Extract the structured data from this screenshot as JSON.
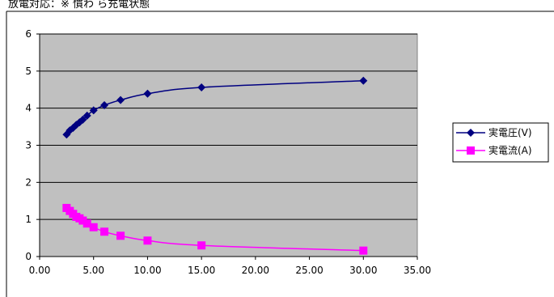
{
  "chart_data": {
    "type": "scatter",
    "title": "放電対応：※ 慣わ ら充電状態",
    "xlabel": "",
    "ylabel": "",
    "xlim": [
      0,
      35
    ],
    "ylim": [
      0,
      6
    ],
    "x_ticks": [
      "0.00",
      "5.00",
      "10.00",
      "15.00",
      "20.00",
      "25.00",
      "30.00",
      "35.00"
    ],
    "y_ticks": [
      "0",
      "1",
      "2",
      "3",
      "4",
      "5",
      "6"
    ],
    "grid": true,
    "plot_background": "#c0c0c0",
    "legend_position": "right",
    "series": [
      {
        "name": "実電圧(V)",
        "color": "#000080",
        "marker": "diamond",
        "x": [
          2.5,
          2.8,
          3.1,
          3.4,
          3.7,
          4.0,
          4.4,
          5.0,
          6.0,
          7.5,
          10.0,
          15.0,
          30.0
        ],
        "y": [
          3.29,
          3.4,
          3.47,
          3.55,
          3.62,
          3.69,
          3.8,
          3.94,
          4.08,
          4.22,
          4.39,
          4.56,
          4.74
        ]
      },
      {
        "name": "実電流(A)",
        "color": "#ff00ff",
        "marker": "square",
        "x": [
          2.5,
          2.8,
          3.1,
          3.4,
          3.7,
          4.0,
          4.4,
          5.0,
          6.0,
          7.5,
          10.0,
          15.0,
          30.0
        ],
        "y": [
          1.31,
          1.23,
          1.15,
          1.07,
          1.03,
          0.97,
          0.89,
          0.79,
          0.67,
          0.56,
          0.43,
          0.3,
          0.16
        ]
      }
    ]
  }
}
